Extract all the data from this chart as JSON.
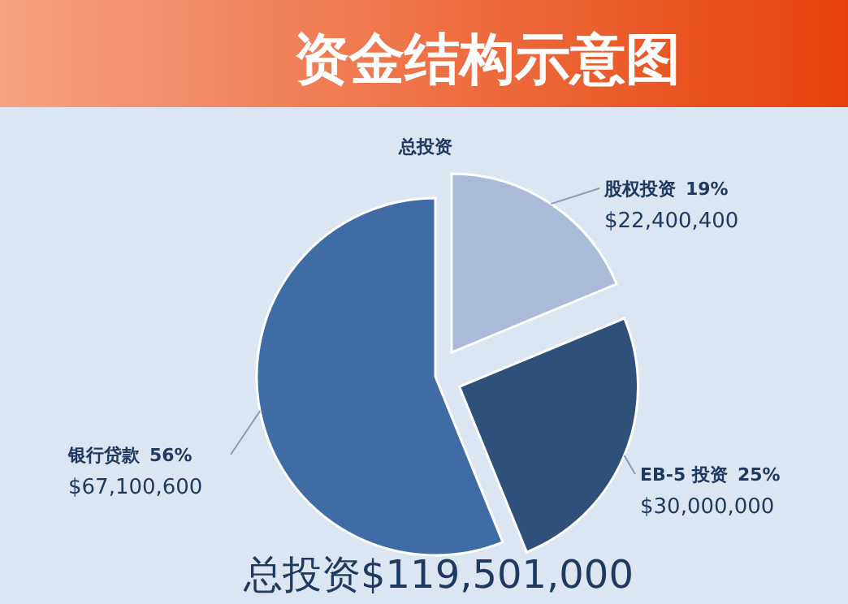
{
  "chart_data": {
    "type": "pie",
    "title": "资金结构示意图",
    "subtitle": "总投资",
    "categories": [
      "股权投资",
      "EB-5 投资",
      "银行贷款"
    ],
    "values": [
      22400400,
      30000000,
      67100600
    ],
    "colors": [
      "#a9bbd9",
      "#2f5079",
      "#3f6ca4"
    ],
    "value_labels": [
      "$22,400,400",
      "$30,000,000",
      "$67,100,600"
    ],
    "annotations": [
      "19%",
      "25%",
      "56%",
      "总投资$119,501,000"
    ]
  }
}
